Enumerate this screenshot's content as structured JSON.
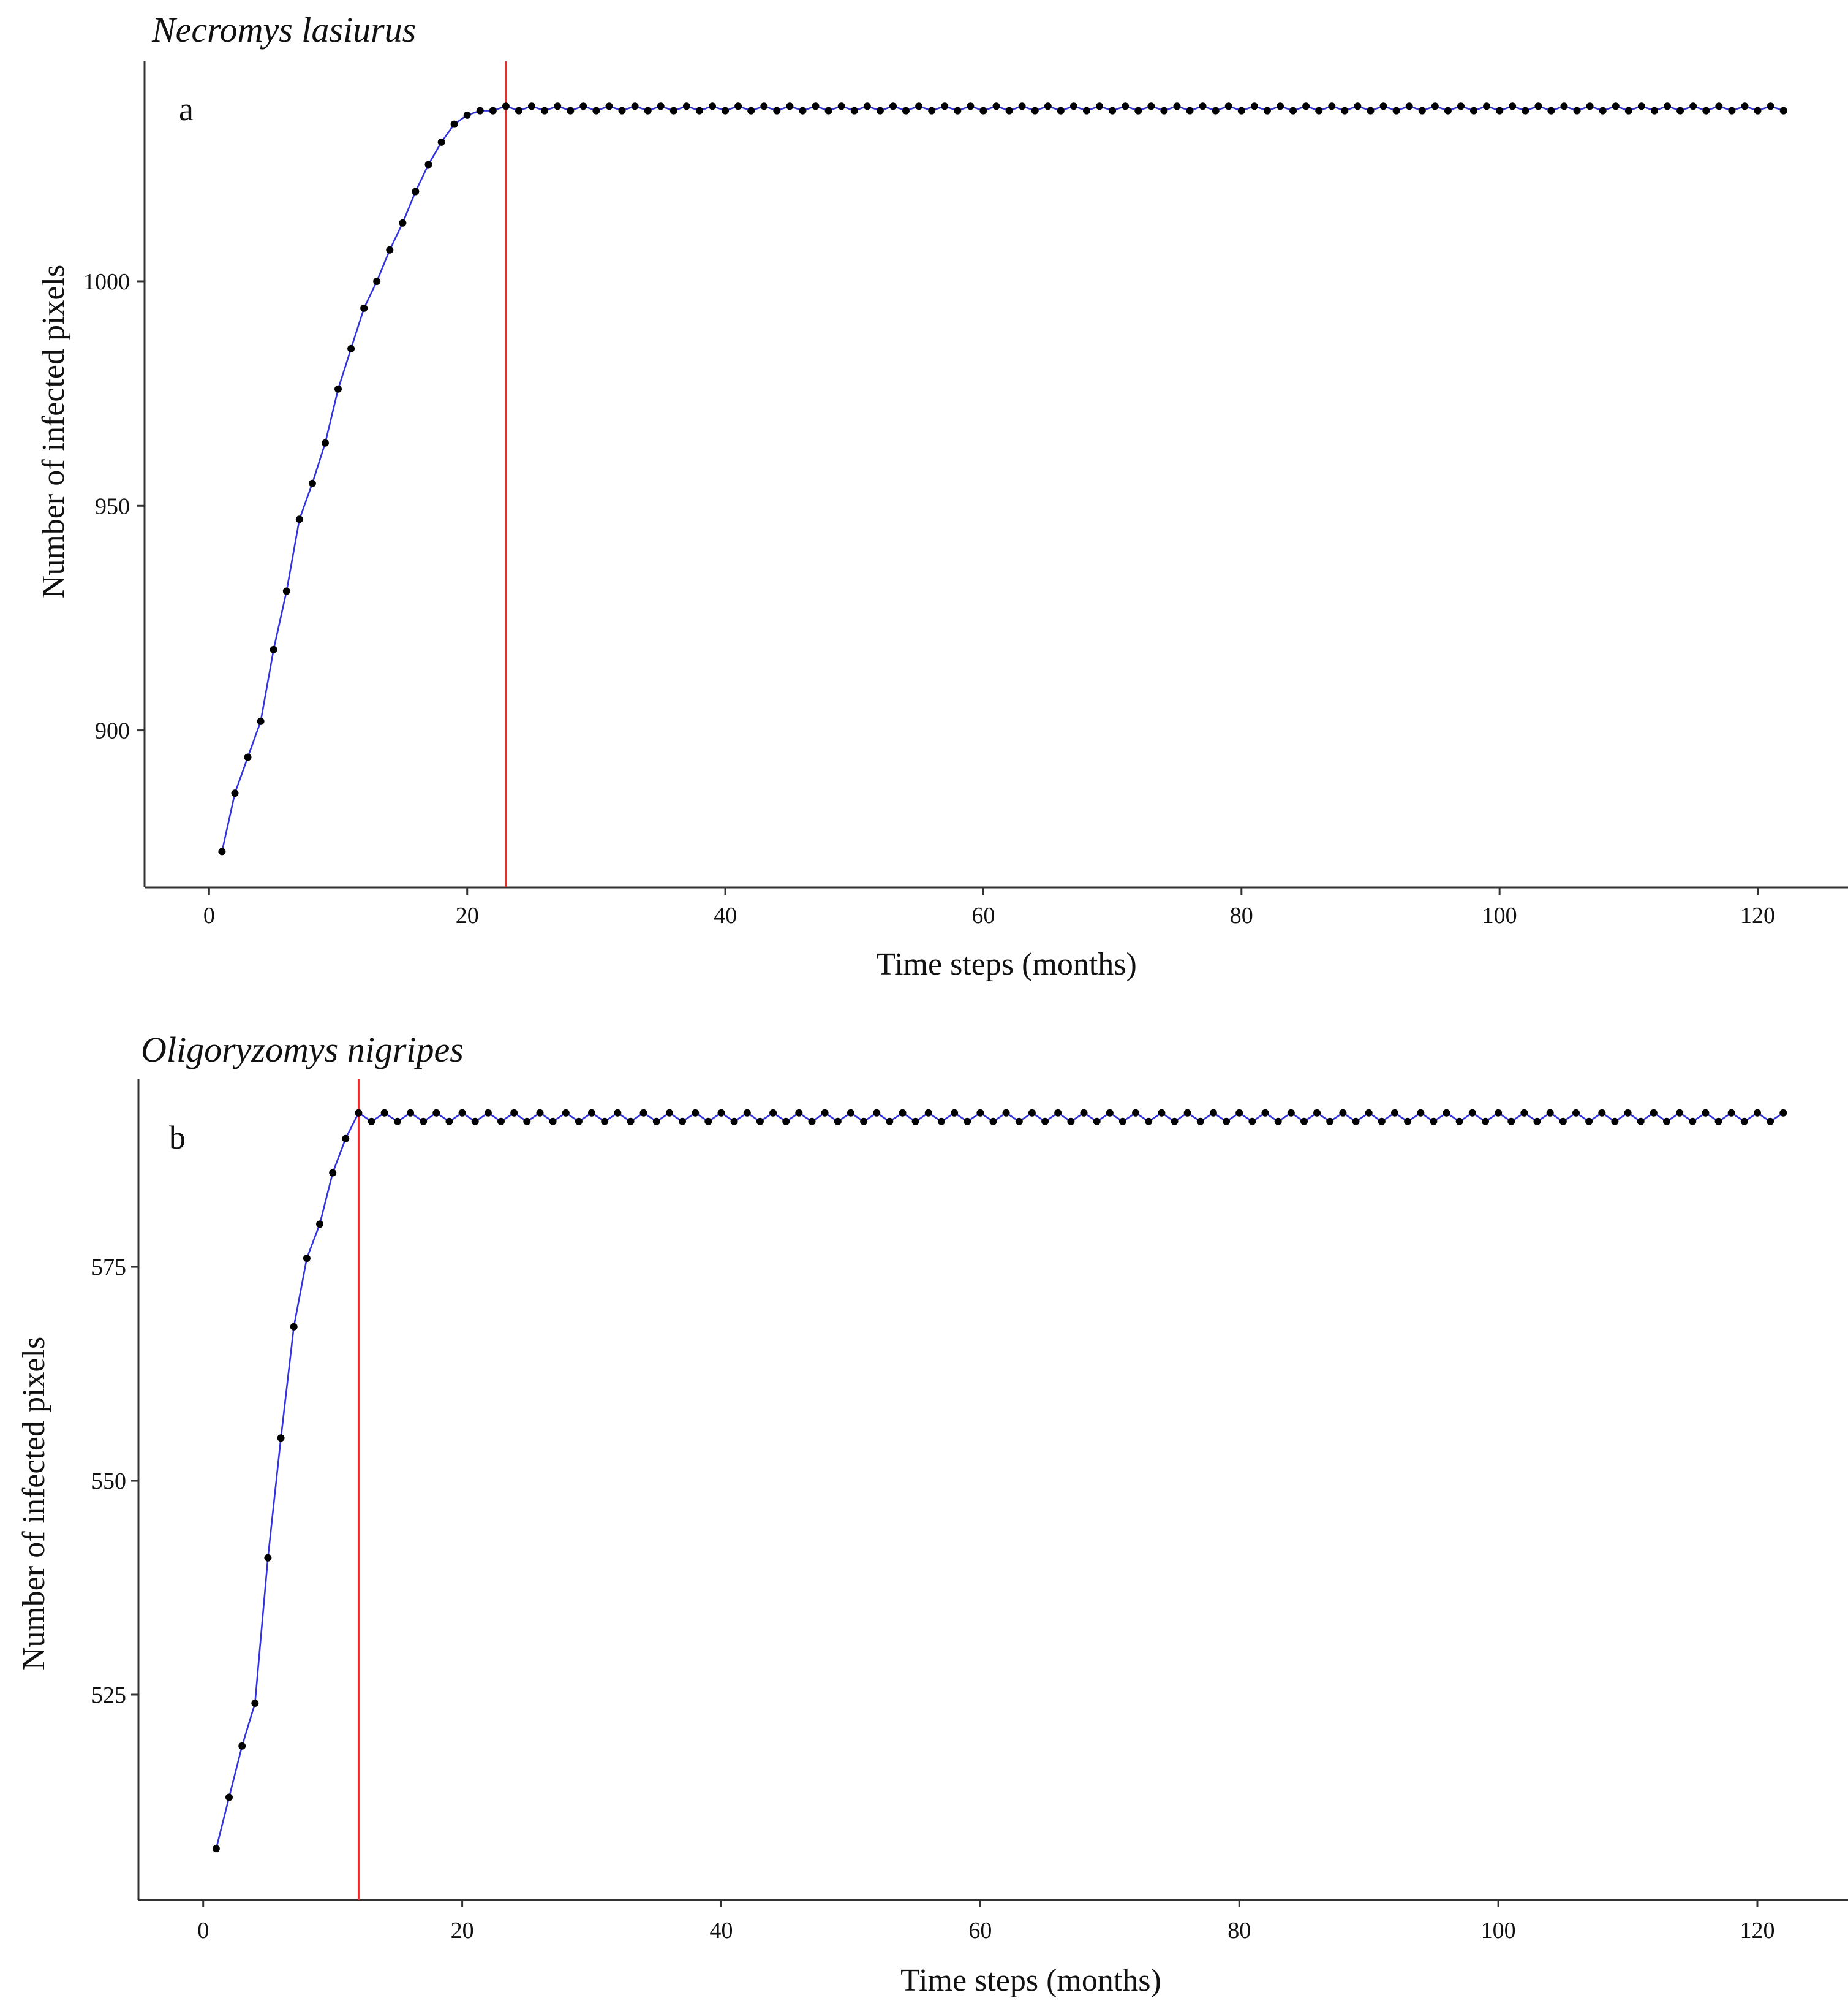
{
  "chart_data": [
    {
      "type": "line",
      "title": "Necromys lasiurus",
      "panel_label": "a",
      "xlabel": "Time steps (months)",
      "ylabel": "Number of infected pixels",
      "xlim": [
        -5,
        127
      ],
      "ylim": [
        865,
        1049
      ],
      "xticks": [
        0,
        20,
        40,
        60,
        80,
        100,
        120
      ],
      "yticks": [
        900,
        950,
        1000
      ],
      "vline_x": 23,
      "grid": false,
      "legend": "none",
      "colors": {
        "line": "#3333dd",
        "points": "#000000",
        "vline": "#e03030"
      },
      "start_values": [
        873,
        886,
        894,
        902,
        918,
        931,
        947,
        955,
        964,
        976,
        985,
        994,
        1000,
        1007,
        1013,
        1020,
        1026,
        1031,
        1035,
        1037,
        1038,
        1038,
        1039
      ],
      "plateau_high": 1039,
      "plateau_low": 1038,
      "x_end": 122
    },
    {
      "type": "line",
      "title": "Oligoryzomys nigripes",
      "panel_label": "b",
      "xlabel": "Time steps (months)",
      "ylabel": "Number of infected pixels",
      "xlim": [
        -5,
        127
      ],
      "ylim": [
        501,
        597
      ],
      "xticks": [
        0,
        20,
        40,
        60,
        80,
        100,
        120
      ],
      "yticks": [
        525,
        550,
        575
      ],
      "vline_x": 12,
      "grid": false,
      "legend": "none",
      "colors": {
        "line": "#3333dd",
        "points": "#000000",
        "vline": "#e03030"
      },
      "start_values": [
        507,
        513,
        519,
        524,
        541,
        555,
        568,
        576,
        580,
        586,
        590,
        593
      ],
      "plateau_high": 593,
      "plateau_low": 592,
      "x_end": 122
    }
  ]
}
